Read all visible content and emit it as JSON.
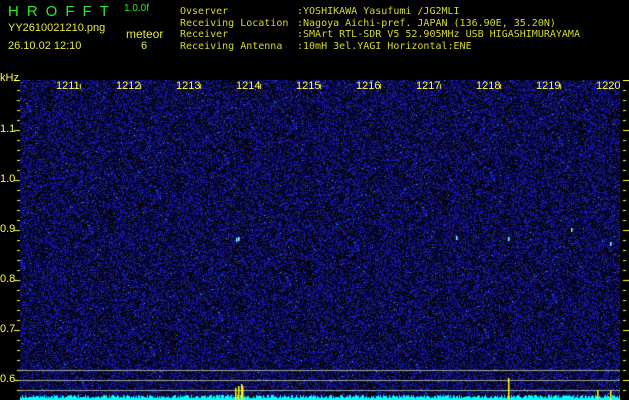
{
  "header": {
    "app_title": "HROFFT",
    "version": "1.0.0f",
    "filename": "YY2610021210.png",
    "datetime": "26.10.02 12:10",
    "mode_label": "meteor",
    "count": "6"
  },
  "info": [
    {
      "key": "Ovserver",
      "value": ":YOSHIKAWA Yasufumi /JG2MLI"
    },
    {
      "key": "Receiving Location",
      "value": ":Nagoya Aichi-pref. JAPAN (136.90E, 35.20N)"
    },
    {
      "key": "Receiver",
      "value": ":SMArt RTL-SDR V5 52.905MHz USB HIGASHIMURAYAMA"
    },
    {
      "key": "Receiving Antenna",
      "value": ":10mH 3el.YAGI Horizontal:ENE"
    }
  ],
  "waterfall": {
    "y_unit": "kHz",
    "y_labels": [
      "1.1",
      "1.0",
      "0.9",
      "0.8",
      "0.7",
      "0.6"
    ],
    "time_labels": [
      "1211",
      "1212",
      "1213",
      "1214",
      "1215",
      "1216",
      "1217",
      "1218",
      "1219",
      "1220"
    ],
    "colors": {
      "background": "#000010",
      "noise": "#2020c0",
      "spectrum": "#00ffff",
      "marker": "#ffff00",
      "axis": "#ffff40"
    }
  }
}
